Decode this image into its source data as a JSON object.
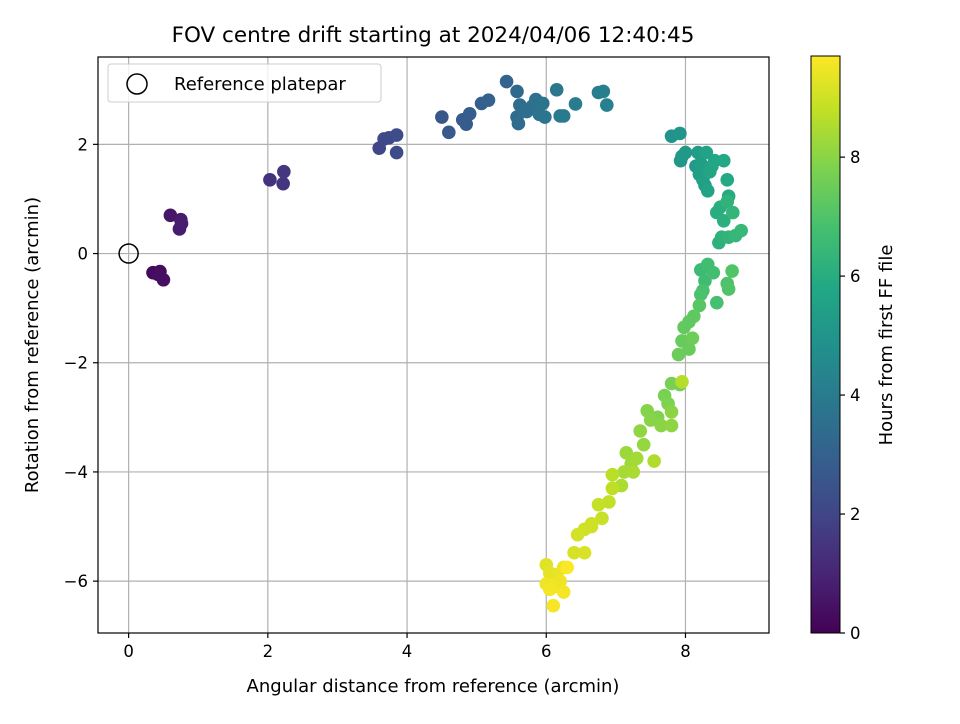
{
  "chart_data": {
    "type": "scatter",
    "title": "FOV centre drift starting at 2024/04/06 12:40:45",
    "xlabel": "Angular distance from reference (arcmin)",
    "ylabel": "Rotation from reference (arcmin)",
    "xlim": [
      -0.44,
      9.2
    ],
    "ylim": [
      -6.95,
      3.6
    ],
    "x_ticks": [
      0,
      2,
      4,
      6,
      8
    ],
    "y_ticks": [
      -6,
      -4,
      -2,
      0,
      2
    ],
    "x_tick_labels": [
      "0",
      "2",
      "4",
      "6",
      "8"
    ],
    "y_tick_labels": [
      "−6",
      "−4",
      "−2",
      "0",
      "2"
    ],
    "grid": true,
    "legend": {
      "placement": "top-left",
      "entries": [
        "Reference platepar"
      ]
    },
    "reference_point": {
      "x": 0,
      "y": 0
    },
    "colorbar": {
      "label": "Hours from first FF file",
      "range": [
        0,
        9.7
      ],
      "ticks": [
        0,
        2,
        4,
        6,
        8
      ],
      "tick_labels": [
        "0",
        "2",
        "4",
        "6",
        "8"
      ],
      "colormap": "viridis"
    },
    "points": [
      [
        0.35,
        -0.35,
        0.2
      ],
      [
        0.45,
        -0.33,
        0.3
      ],
      [
        0.5,
        -0.48,
        0.4
      ],
      [
        0.42,
        -0.38,
        0.35
      ],
      [
        0.6,
        0.7,
        0.6
      ],
      [
        0.75,
        0.62,
        0.7
      ],
      [
        0.73,
        0.45,
        0.75
      ],
      [
        0.76,
        0.55,
        0.8
      ],
      [
        2.03,
        1.35,
        1.4
      ],
      [
        2.22,
        1.28,
        1.5
      ],
      [
        2.23,
        1.5,
        1.55
      ],
      [
        3.6,
        1.93,
        2.0
      ],
      [
        3.67,
        2.1,
        2.1
      ],
      [
        3.74,
        2.12,
        2.15
      ],
      [
        3.85,
        1.85,
        2.2
      ],
      [
        3.85,
        2.17,
        2.25
      ],
      [
        4.5,
        2.5,
        2.6
      ],
      [
        4.6,
        2.22,
        2.7
      ],
      [
        4.8,
        2.45,
        2.75
      ],
      [
        4.85,
        2.37,
        2.8
      ],
      [
        4.9,
        2.56,
        2.85
      ],
      [
        5.07,
        2.75,
        2.95
      ],
      [
        5.17,
        2.81,
        3.0
      ],
      [
        5.43,
        3.15,
        3.1
      ],
      [
        5.58,
        2.97,
        3.3
      ],
      [
        5.58,
        2.5,
        3.35
      ],
      [
        5.6,
        2.38,
        3.4
      ],
      [
        5.62,
        2.72,
        3.45
      ],
      [
        5.72,
        2.6,
        3.5
      ],
      [
        5.8,
        2.7,
        3.55
      ],
      [
        5.85,
        2.82,
        3.6
      ],
      [
        5.9,
        2.55,
        3.65
      ],
      [
        5.95,
        2.75,
        3.7
      ],
      [
        5.98,
        2.5,
        3.75
      ],
      [
        6.15,
        3.0,
        3.85
      ],
      [
        6.2,
        2.52,
        3.9
      ],
      [
        6.25,
        2.52,
        3.95
      ],
      [
        6.42,
        2.74,
        4.0
      ],
      [
        6.75,
        2.95,
        4.1
      ],
      [
        6.82,
        2.97,
        4.15
      ],
      [
        6.87,
        2.72,
        4.2
      ],
      [
        7.8,
        2.15,
        4.9
      ],
      [
        7.92,
        2.2,
        5.0
      ],
      [
        7.93,
        1.7,
        5.1
      ],
      [
        7.95,
        1.78,
        5.15
      ],
      [
        8.0,
        1.85,
        5.2
      ],
      [
        8.15,
        1.6,
        5.25
      ],
      [
        8.18,
        1.85,
        5.3
      ],
      [
        8.2,
        1.45,
        5.35
      ],
      [
        8.22,
        1.65,
        5.4
      ],
      [
        8.25,
        1.35,
        5.45
      ],
      [
        8.28,
        1.25,
        5.5
      ],
      [
        8.3,
        1.85,
        5.55
      ],
      [
        8.32,
        1.15,
        5.6
      ],
      [
        8.35,
        1.5,
        5.65
      ],
      [
        8.38,
        1.6,
        5.7
      ],
      [
        8.42,
        1.7,
        5.75
      ],
      [
        8.55,
        1.7,
        5.8
      ],
      [
        8.6,
        1.35,
        5.85
      ],
      [
        8.62,
        1.05,
        5.9
      ],
      [
        8.45,
        0.75,
        6.0
      ],
      [
        8.5,
        0.85,
        6.05
      ],
      [
        8.55,
        0.6,
        6.1
      ],
      [
        8.48,
        0.2,
        6.15
      ],
      [
        8.52,
        0.3,
        6.2
      ],
      [
        8.6,
        0.95,
        6.25
      ],
      [
        8.62,
        0.3,
        6.3
      ],
      [
        8.68,
        0.75,
        6.35
      ],
      [
        8.72,
        0.33,
        6.4
      ],
      [
        8.8,
        0.42,
        6.45
      ],
      [
        8.22,
        -0.3,
        6.6
      ],
      [
        8.28,
        -0.5,
        6.65
      ],
      [
        8.32,
        -0.2,
        6.7
      ],
      [
        8.4,
        -0.35,
        6.75
      ],
      [
        8.45,
        -0.9,
        6.8
      ],
      [
        8.25,
        -0.68,
        6.85
      ],
      [
        8.22,
        -0.75,
        6.9
      ],
      [
        8.6,
        -0.55,
        6.95
      ],
      [
        8.62,
        -0.65,
        7.0
      ],
      [
        8.67,
        -0.32,
        7.05
      ],
      [
        8.2,
        -0.95,
        7.15
      ],
      [
        8.12,
        -1.15,
        7.25
      ],
      [
        8.05,
        -1.25,
        7.3
      ],
      [
        7.98,
        -1.35,
        7.35
      ],
      [
        7.95,
        -1.6,
        7.4
      ],
      [
        8.05,
        -1.75,
        7.45
      ],
      [
        7.9,
        -1.85,
        7.5
      ],
      [
        8.1,
        -1.55,
        7.55
      ],
      [
        7.92,
        -2.4,
        7.65
      ],
      [
        7.8,
        -2.38,
        7.7
      ],
      [
        7.7,
        -2.6,
        7.75
      ],
      [
        7.75,
        -2.75,
        7.8
      ],
      [
        7.6,
        -3.0,
        7.85
      ],
      [
        7.45,
        -2.88,
        7.9
      ],
      [
        7.5,
        -3.05,
        7.95
      ],
      [
        7.65,
        -3.15,
        8.0
      ],
      [
        7.8,
        -2.9,
        8.0
      ],
      [
        7.8,
        -3.15,
        8.05
      ],
      [
        7.35,
        -3.25,
        8.1
      ],
      [
        7.4,
        -3.5,
        8.15
      ],
      [
        7.15,
        -3.65,
        8.25
      ],
      [
        7.22,
        -3.85,
        8.3
      ],
      [
        7.3,
        -3.75,
        8.35
      ],
      [
        7.12,
        -4.0,
        8.4
      ],
      [
        7.25,
        -4.0,
        8.45
      ],
      [
        7.08,
        -4.25,
        8.5
      ],
      [
        7.55,
        -3.8,
        8.55
      ],
      [
        7.95,
        -2.35,
        8.6
      ],
      [
        6.95,
        -4.05,
        8.7
      ],
      [
        6.95,
        -4.3,
        8.75
      ],
      [
        6.9,
        -4.55,
        8.8
      ],
      [
        6.75,
        -4.6,
        8.85
      ],
      [
        6.8,
        -4.85,
        8.9
      ],
      [
        6.65,
        -4.95,
        8.95
      ],
      [
        6.55,
        -5.05,
        9.0
      ],
      [
        6.45,
        -5.15,
        9.05
      ],
      [
        6.4,
        -5.48,
        9.1
      ],
      [
        6.55,
        -5.48,
        9.15
      ],
      [
        6.65,
        -5.0,
        9.0
      ],
      [
        6.0,
        -5.7,
        9.25
      ],
      [
        6.05,
        -5.85,
        9.3
      ],
      [
        6.15,
        -5.88,
        9.35
      ],
      [
        6.25,
        -5.75,
        9.4
      ],
      [
        6.0,
        -6.05,
        9.45
      ],
      [
        6.12,
        -6.1,
        9.5
      ],
      [
        6.2,
        -6.0,
        9.5
      ],
      [
        6.25,
        -6.2,
        9.55
      ],
      [
        6.05,
        -6.15,
        9.55
      ],
      [
        6.1,
        -6.45,
        9.6
      ],
      [
        6.3,
        -5.75,
        9.65
      ]
    ]
  }
}
